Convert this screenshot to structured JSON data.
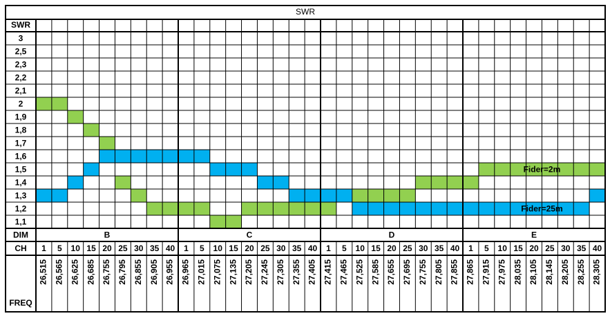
{
  "chart_data": {
    "type": "grid",
    "title": "SWR",
    "row_header": "SWR",
    "yticks": [
      3,
      {
        "value": 2.5,
        "label": "2,5"
      },
      {
        "value": 2.3,
        "label": "2,3"
      },
      {
        "value": 2.2,
        "label": "2,2"
      },
      {
        "value": 2.1,
        "label": "2,1"
      },
      2,
      {
        "value": 1.9,
        "label": "1,9"
      },
      {
        "value": 1.8,
        "label": "1,8"
      },
      {
        "value": 1.7,
        "label": "1,7"
      },
      {
        "value": 1.6,
        "label": "1,6"
      },
      {
        "value": 1.5,
        "label": "1,5"
      },
      {
        "value": 1.4,
        "label": "1,4"
      },
      {
        "value": 1.3,
        "label": "1,3"
      },
      {
        "value": 1.2,
        "label": "1,2"
      },
      {
        "value": 1.1,
        "label": "1,1"
      }
    ],
    "dim_label": "DIM",
    "bands": [
      "B",
      "C",
      "D",
      "E"
    ],
    "ch_label": "CH",
    "channels": [
      1,
      5,
      10,
      15,
      20,
      25,
      30,
      35,
      40,
      1,
      5,
      10,
      15,
      20,
      25,
      30,
      35,
      40,
      1,
      5,
      10,
      15,
      20,
      25,
      30,
      35,
      40,
      1,
      5,
      10,
      15,
      20,
      25,
      30,
      35,
      40
    ],
    "freq_label": "FREQ",
    "freqs": [
      "26,515",
      "26,565",
      "26,625",
      "26,685",
      "26,755",
      "26,795",
      "26,855",
      "26,905",
      "26,955",
      "26,965",
      "27,015",
      "27,075",
      "27,135",
      "27,205",
      "27,245",
      "27,305",
      "27,355",
      "27,405",
      "27,415",
      "27,465",
      "27,525",
      "27,585",
      "27,655",
      "27,695",
      "27,755",
      "27,805",
      "27,855",
      "27,865",
      "27,915",
      "27,975",
      "28,035",
      "28,105",
      "28,145",
      "28,205",
      "28,255",
      "28,305"
    ],
    "series": [
      {
        "name": "Fider=2m",
        "color": "#92d050",
        "values": [
          2,
          2,
          1.9,
          1.8,
          1.7,
          1.4,
          1.3,
          1.2,
          1.2,
          1.2,
          1.2,
          1.1,
          1.1,
          1.2,
          1.2,
          1.2,
          1.2,
          1.2,
          1.2,
          null,
          1.3,
          1.3,
          1.3,
          1.3,
          1.4,
          1.4,
          1.4,
          1.4,
          1.5,
          1.5,
          1.5,
          1.5,
          1.5,
          1.5,
          1.5,
          1.5
        ]
      },
      {
        "name": "Fider=25m",
        "color": "#00b0f0",
        "values": [
          1.3,
          1.3,
          1.4,
          1.5,
          1.6,
          1.6,
          1.6,
          1.6,
          1.6,
          1.6,
          1.6,
          1.5,
          1.5,
          1.5,
          1.4,
          1.4,
          1.3,
          1.3,
          1.3,
          1.3,
          1.2,
          1.2,
          1.2,
          1.2,
          1.2,
          1.2,
          1.2,
          1.2,
          1.2,
          1.2,
          1.2,
          1.2,
          1.2,
          1.2,
          1.2,
          1.3
        ]
      }
    ]
  }
}
